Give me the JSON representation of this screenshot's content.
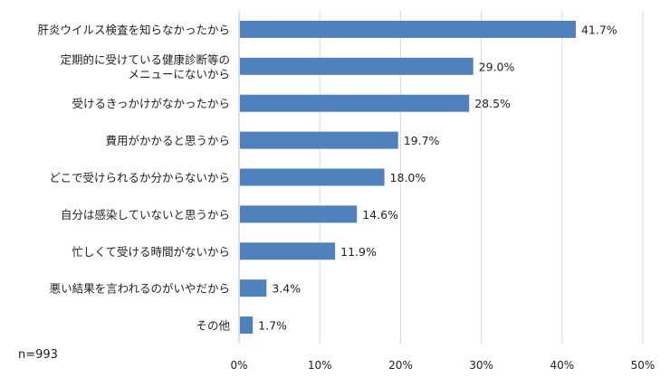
{
  "chart_data": {
    "type": "bar",
    "orientation": "horizontal",
    "categories": [
      "肝炎ウイルス検査を知らなかったから",
      "定期的に受けている健康診断等の\nメニューにないから",
      "受けるきっかけがなかったから",
      "費用がかかると思うから",
      "どこで受けられるか分からないから",
      "自分は感染していないと思うから",
      "忙しくて受ける時間がないから",
      "悪い結果を言われるのがいやだから",
      "その他"
    ],
    "values": [
      41.7,
      29.0,
      28.5,
      19.7,
      18.0,
      14.6,
      11.9,
      3.4,
      1.7
    ],
    "value_labels": [
      "41.7%",
      "29.0%",
      "28.5%",
      "19.7%",
      "18.0%",
      "14.6%",
      "11.9%",
      "3.4%",
      "1.7%"
    ],
    "xlim": [
      0,
      50
    ],
    "xticks": [
      "0%",
      "10%",
      "20%",
      "30%",
      "40%",
      "50%"
    ],
    "grid": "vertical",
    "bar_color": "#4f81bd",
    "grid_color": "#d9d9d9",
    "note": "n=993"
  }
}
